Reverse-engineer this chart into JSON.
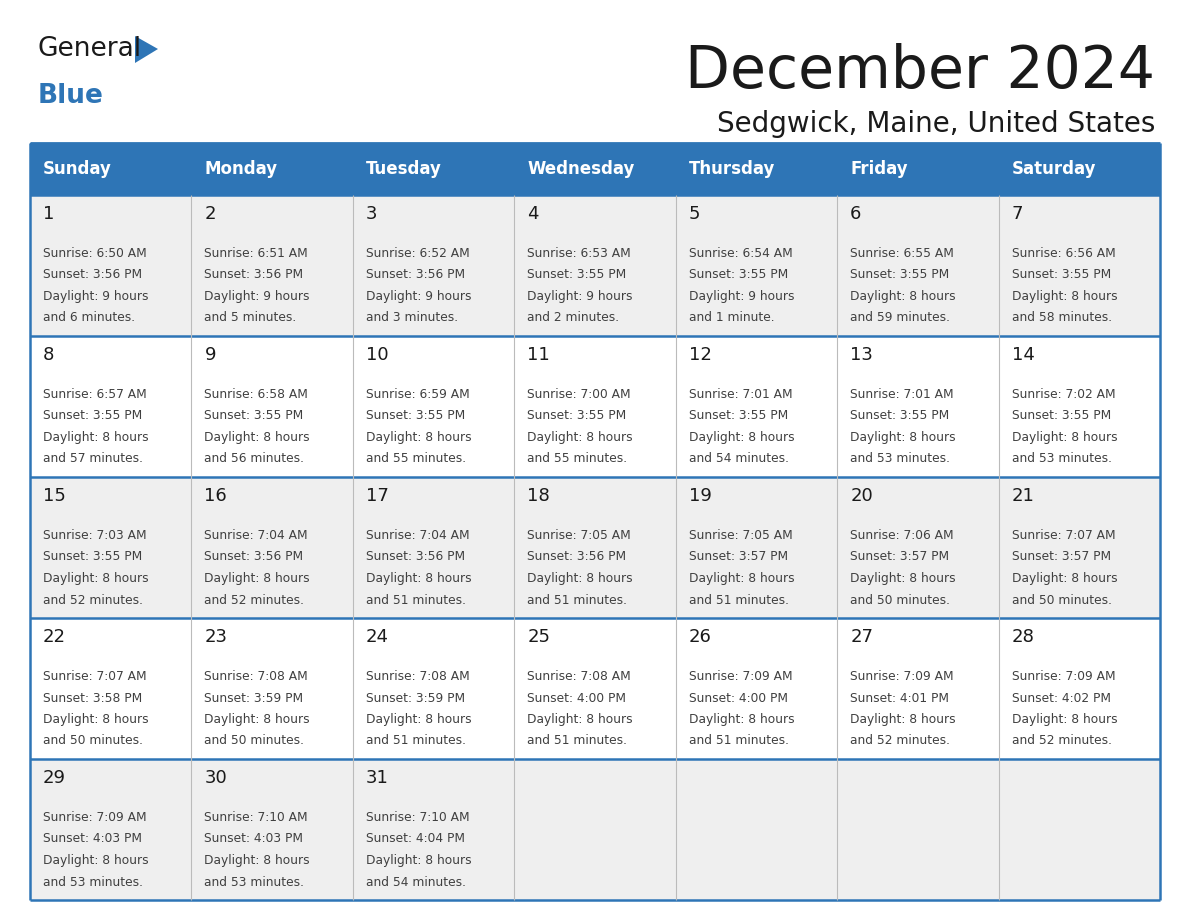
{
  "title": "December 2024",
  "subtitle": "Sedgwick, Maine, United States",
  "header_color": "#2E75B6",
  "header_text_color": "#FFFFFF",
  "day_names": [
    "Sunday",
    "Monday",
    "Tuesday",
    "Wednesday",
    "Thursday",
    "Friday",
    "Saturday"
  ],
  "background_color": "#FFFFFF",
  "cell_bg_even": "#EFEFEF",
  "cell_bg_odd": "#FFFFFF",
  "border_color": "#2E75B6",
  "row_line_color": "#2E75B6",
  "day_number_color": "#1a1a1a",
  "text_color": "#404040",
  "logo_black": "#1a1a1a",
  "logo_blue": "#2E75B6",
  "title_color": "#1a1a1a",
  "days": [
    {
      "day": 1,
      "col": 0,
      "row": 0,
      "sunrise": "6:50 AM",
      "sunset": "3:56 PM",
      "dl1": "Daylight: 9 hours",
      "dl2": "and 6 minutes."
    },
    {
      "day": 2,
      "col": 1,
      "row": 0,
      "sunrise": "6:51 AM",
      "sunset": "3:56 PM",
      "dl1": "Daylight: 9 hours",
      "dl2": "and 5 minutes."
    },
    {
      "day": 3,
      "col": 2,
      "row": 0,
      "sunrise": "6:52 AM",
      "sunset": "3:56 PM",
      "dl1": "Daylight: 9 hours",
      "dl2": "and 3 minutes."
    },
    {
      "day": 4,
      "col": 3,
      "row": 0,
      "sunrise": "6:53 AM",
      "sunset": "3:55 PM",
      "dl1": "Daylight: 9 hours",
      "dl2": "and 2 minutes."
    },
    {
      "day": 5,
      "col": 4,
      "row": 0,
      "sunrise": "6:54 AM",
      "sunset": "3:55 PM",
      "dl1": "Daylight: 9 hours",
      "dl2": "and 1 minute."
    },
    {
      "day": 6,
      "col": 5,
      "row": 0,
      "sunrise": "6:55 AM",
      "sunset": "3:55 PM",
      "dl1": "Daylight: 8 hours",
      "dl2": "and 59 minutes."
    },
    {
      "day": 7,
      "col": 6,
      "row": 0,
      "sunrise": "6:56 AM",
      "sunset": "3:55 PM",
      "dl1": "Daylight: 8 hours",
      "dl2": "and 58 minutes."
    },
    {
      "day": 8,
      "col": 0,
      "row": 1,
      "sunrise": "6:57 AM",
      "sunset": "3:55 PM",
      "dl1": "Daylight: 8 hours",
      "dl2": "and 57 minutes."
    },
    {
      "day": 9,
      "col": 1,
      "row": 1,
      "sunrise": "6:58 AM",
      "sunset": "3:55 PM",
      "dl1": "Daylight: 8 hours",
      "dl2": "and 56 minutes."
    },
    {
      "day": 10,
      "col": 2,
      "row": 1,
      "sunrise": "6:59 AM",
      "sunset": "3:55 PM",
      "dl1": "Daylight: 8 hours",
      "dl2": "and 55 minutes."
    },
    {
      "day": 11,
      "col": 3,
      "row": 1,
      "sunrise": "7:00 AM",
      "sunset": "3:55 PM",
      "dl1": "Daylight: 8 hours",
      "dl2": "and 55 minutes."
    },
    {
      "day": 12,
      "col": 4,
      "row": 1,
      "sunrise": "7:01 AM",
      "sunset": "3:55 PM",
      "dl1": "Daylight: 8 hours",
      "dl2": "and 54 minutes."
    },
    {
      "day": 13,
      "col": 5,
      "row": 1,
      "sunrise": "7:01 AM",
      "sunset": "3:55 PM",
      "dl1": "Daylight: 8 hours",
      "dl2": "and 53 minutes."
    },
    {
      "day": 14,
      "col": 6,
      "row": 1,
      "sunrise": "7:02 AM",
      "sunset": "3:55 PM",
      "dl1": "Daylight: 8 hours",
      "dl2": "and 53 minutes."
    },
    {
      "day": 15,
      "col": 0,
      "row": 2,
      "sunrise": "7:03 AM",
      "sunset": "3:55 PM",
      "dl1": "Daylight: 8 hours",
      "dl2": "and 52 minutes."
    },
    {
      "day": 16,
      "col": 1,
      "row": 2,
      "sunrise": "7:04 AM",
      "sunset": "3:56 PM",
      "dl1": "Daylight: 8 hours",
      "dl2": "and 52 minutes."
    },
    {
      "day": 17,
      "col": 2,
      "row": 2,
      "sunrise": "7:04 AM",
      "sunset": "3:56 PM",
      "dl1": "Daylight: 8 hours",
      "dl2": "and 51 minutes."
    },
    {
      "day": 18,
      "col": 3,
      "row": 2,
      "sunrise": "7:05 AM",
      "sunset": "3:56 PM",
      "dl1": "Daylight: 8 hours",
      "dl2": "and 51 minutes."
    },
    {
      "day": 19,
      "col": 4,
      "row": 2,
      "sunrise": "7:05 AM",
      "sunset": "3:57 PM",
      "dl1": "Daylight: 8 hours",
      "dl2": "and 51 minutes."
    },
    {
      "day": 20,
      "col": 5,
      "row": 2,
      "sunrise": "7:06 AM",
      "sunset": "3:57 PM",
      "dl1": "Daylight: 8 hours",
      "dl2": "and 50 minutes."
    },
    {
      "day": 21,
      "col": 6,
      "row": 2,
      "sunrise": "7:07 AM",
      "sunset": "3:57 PM",
      "dl1": "Daylight: 8 hours",
      "dl2": "and 50 minutes."
    },
    {
      "day": 22,
      "col": 0,
      "row": 3,
      "sunrise": "7:07 AM",
      "sunset": "3:58 PM",
      "dl1": "Daylight: 8 hours",
      "dl2": "and 50 minutes."
    },
    {
      "day": 23,
      "col": 1,
      "row": 3,
      "sunrise": "7:08 AM",
      "sunset": "3:59 PM",
      "dl1": "Daylight: 8 hours",
      "dl2": "and 50 minutes."
    },
    {
      "day": 24,
      "col": 2,
      "row": 3,
      "sunrise": "7:08 AM",
      "sunset": "3:59 PM",
      "dl1": "Daylight: 8 hours",
      "dl2": "and 51 minutes."
    },
    {
      "day": 25,
      "col": 3,
      "row": 3,
      "sunrise": "7:08 AM",
      "sunset": "4:00 PM",
      "dl1": "Daylight: 8 hours",
      "dl2": "and 51 minutes."
    },
    {
      "day": 26,
      "col": 4,
      "row": 3,
      "sunrise": "7:09 AM",
      "sunset": "4:00 PM",
      "dl1": "Daylight: 8 hours",
      "dl2": "and 51 minutes."
    },
    {
      "day": 27,
      "col": 5,
      "row": 3,
      "sunrise": "7:09 AM",
      "sunset": "4:01 PM",
      "dl1": "Daylight: 8 hours",
      "dl2": "and 52 minutes."
    },
    {
      "day": 28,
      "col": 6,
      "row": 3,
      "sunrise": "7:09 AM",
      "sunset": "4:02 PM",
      "dl1": "Daylight: 8 hours",
      "dl2": "and 52 minutes."
    },
    {
      "day": 29,
      "col": 0,
      "row": 4,
      "sunrise": "7:09 AM",
      "sunset": "4:03 PM",
      "dl1": "Daylight: 8 hours",
      "dl2": "and 53 minutes."
    },
    {
      "day": 30,
      "col": 1,
      "row": 4,
      "sunrise": "7:10 AM",
      "sunset": "4:03 PM",
      "dl1": "Daylight: 8 hours",
      "dl2": "and 53 minutes."
    },
    {
      "day": 31,
      "col": 2,
      "row": 4,
      "sunrise": "7:10 AM",
      "sunset": "4:04 PM",
      "dl1": "Daylight: 8 hours",
      "dl2": "and 54 minutes."
    }
  ]
}
